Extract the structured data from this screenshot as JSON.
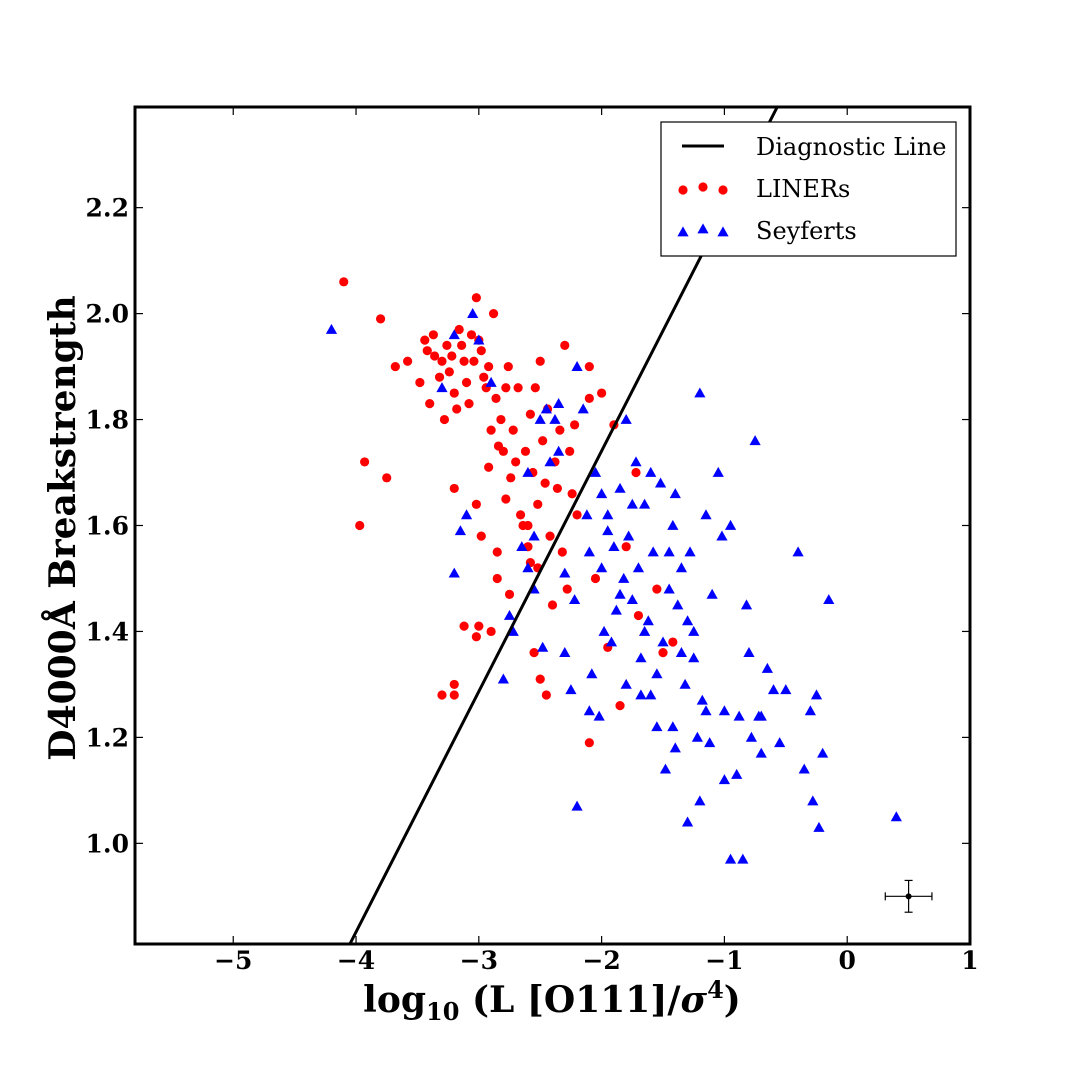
{
  "chart_data": {
    "type": "scatter",
    "title": "",
    "xlabel": "log10 (L [O111]/σ4)",
    "xlabel_parts": {
      "base": "log",
      "sub": "10",
      "mid": " (L [O111]/",
      "sigma": "σ",
      "sup": "4",
      "end": ")"
    },
    "ylabel": "D4000Å Breakstrength",
    "xlim": [
      -5.8,
      1.0
    ],
    "ylim": [
      0.81,
      2.39
    ],
    "xticks": [
      -5,
      -4,
      -3,
      -2,
      -1,
      0,
      1
    ],
    "xtick_labels": [
      "−5",
      "−4",
      "−3",
      "−2",
      "−1",
      "0",
      "1"
    ],
    "yticks": [
      1.0,
      1.2,
      1.4,
      1.6,
      1.8,
      2.0,
      2.2
    ],
    "ytick_labels": [
      "1.0",
      "1.2",
      "1.4",
      "1.6",
      "1.8",
      "2.0",
      "2.2"
    ],
    "grid": false,
    "legend_position": "top-right",
    "diagnostic_line": {
      "name": "Diagnostic Line",
      "color": "#000000",
      "points": [
        [
          -4.05,
          0.81
        ],
        [
          -0.57,
          2.39
        ]
      ]
    },
    "error_bar": {
      "x": 0.5,
      "y": 0.9,
      "xerr": 0.19,
      "yerr": 0.03
    },
    "series": [
      {
        "name": "LINERs",
        "marker": "circle",
        "color": "#ff0000",
        "points": [
          [
            -4.1,
            2.06
          ],
          [
            -3.8,
            1.99
          ],
          [
            -3.97,
            1.6
          ],
          [
            -3.93,
            1.72
          ],
          [
            -3.75,
            1.69
          ],
          [
            -3.68,
            1.9
          ],
          [
            -3.58,
            1.91
          ],
          [
            -3.48,
            1.87
          ],
          [
            -3.44,
            1.95
          ],
          [
            -3.42,
            1.93
          ],
          [
            -3.4,
            1.83
          ],
          [
            -3.37,
            1.96
          ],
          [
            -3.36,
            1.92
          ],
          [
            -3.32,
            1.88
          ],
          [
            -3.3,
            1.91
          ],
          [
            -3.28,
            1.8
          ],
          [
            -3.26,
            1.94
          ],
          [
            -3.24,
            1.89
          ],
          [
            -3.22,
            1.92
          ],
          [
            -3.2,
            1.85
          ],
          [
            -3.18,
            1.82
          ],
          [
            -3.16,
            1.97
          ],
          [
            -3.14,
            1.94
          ],
          [
            -3.12,
            1.91
          ],
          [
            -3.1,
            1.87
          ],
          [
            -3.08,
            1.83
          ],
          [
            -3.06,
            1.96
          ],
          [
            -3.04,
            1.91
          ],
          [
            -3.02,
            2.03
          ],
          [
            -3.0,
            1.95
          ],
          [
            -2.98,
            1.93
          ],
          [
            -2.96,
            1.88
          ],
          [
            -2.94,
            1.86
          ],
          [
            -2.92,
            1.9
          ],
          [
            -2.9,
            1.78
          ],
          [
            -2.88,
            2.0
          ],
          [
            -2.86,
            1.84
          ],
          [
            -2.84,
            1.75
          ],
          [
            -2.82,
            1.8
          ],
          [
            -2.8,
            1.74
          ],
          [
            -2.78,
            1.86
          ],
          [
            -2.76,
            1.9
          ],
          [
            -2.74,
            1.69
          ],
          [
            -2.72,
            1.78
          ],
          [
            -2.7,
            1.72
          ],
          [
            -2.68,
            1.86
          ],
          [
            -2.66,
            1.62
          ],
          [
            -2.64,
            1.6
          ],
          [
            -2.62,
            1.74
          ],
          [
            -2.6,
            1.56
          ],
          [
            -2.58,
            1.81
          ],
          [
            -2.56,
            1.7
          ],
          [
            -2.54,
            1.86
          ],
          [
            -2.52,
            1.64
          ],
          [
            -2.5,
            1.91
          ],
          [
            -2.48,
            1.76
          ],
          [
            -2.46,
            1.68
          ],
          [
            -2.44,
            1.82
          ],
          [
            -2.42,
            1.58
          ],
          [
            -2.4,
            1.45
          ],
          [
            -2.38,
            1.72
          ],
          [
            -2.36,
            1.67
          ],
          [
            -2.34,
            1.78
          ],
          [
            -2.32,
            1.55
          ],
          [
            -2.3,
            1.94
          ],
          [
            -2.28,
            1.48
          ],
          [
            -2.26,
            1.74
          ],
          [
            -2.24,
            1.66
          ],
          [
            -2.22,
            1.79
          ],
          [
            -2.2,
            1.62
          ],
          [
            -2.1,
            1.84
          ],
          [
            -2.1,
            1.9
          ],
          [
            -2.05,
            1.5
          ],
          [
            -2.0,
            1.85
          ],
          [
            -1.95,
            1.37
          ],
          [
            -1.9,
            1.79
          ],
          [
            -1.85,
            1.26
          ],
          [
            -1.8,
            1.56
          ],
          [
            -1.72,
            1.7
          ],
          [
            -1.7,
            1.43
          ],
          [
            -1.55,
            1.48
          ],
          [
            -1.5,
            1.36
          ],
          [
            -1.42,
            1.38
          ],
          [
            -2.1,
            1.19
          ],
          [
            -2.55,
            1.36
          ],
          [
            -2.5,
            1.31
          ],
          [
            -2.45,
            1.28
          ],
          [
            -3.2,
            1.28
          ],
          [
            -3.3,
            1.28
          ],
          [
            -3.2,
            1.3
          ],
          [
            -3.12,
            1.41
          ],
          [
            -3.0,
            1.41
          ],
          [
            -3.02,
            1.39
          ],
          [
            -2.9,
            1.4
          ],
          [
            -2.85,
            1.5
          ],
          [
            -2.85,
            1.55
          ],
          [
            -2.75,
            1.47
          ],
          [
            -3.2,
            1.67
          ],
          [
            -3.02,
            1.64
          ],
          [
            -2.98,
            1.58
          ],
          [
            -2.92,
            1.71
          ],
          [
            -2.78,
            1.65
          ],
          [
            -2.6,
            1.6
          ],
          [
            -2.58,
            1.53
          ],
          [
            -2.52,
            1.52
          ]
        ]
      },
      {
        "name": "Seyferts",
        "marker": "triangle",
        "color": "#0000ff",
        "points": [
          [
            -4.2,
            1.97
          ],
          [
            -3.3,
            1.86
          ],
          [
            -3.2,
            1.96
          ],
          [
            -3.05,
            2.0
          ],
          [
            -3.0,
            1.95
          ],
          [
            -2.9,
            1.87
          ],
          [
            -3.2,
            1.51
          ],
          [
            -3.15,
            1.59
          ],
          [
            -3.1,
            1.62
          ],
          [
            -2.8,
            1.31
          ],
          [
            -2.75,
            1.43
          ],
          [
            -2.72,
            1.4
          ],
          [
            -2.65,
            1.56
          ],
          [
            -2.6,
            1.7
          ],
          [
            -2.55,
            1.58
          ],
          [
            -2.5,
            1.8
          ],
          [
            -2.48,
            1.37
          ],
          [
            -2.45,
            1.82
          ],
          [
            -2.42,
            1.72
          ],
          [
            -2.38,
            1.8
          ],
          [
            -2.35,
            1.83
          ],
          [
            -2.3,
            1.51
          ],
          [
            -2.25,
            1.29
          ],
          [
            -2.22,
            1.46
          ],
          [
            -2.2,
            1.9
          ],
          [
            -2.15,
            1.82
          ],
          [
            -2.12,
            1.62
          ],
          [
            -2.1,
            1.55
          ],
          [
            -2.08,
            1.32
          ],
          [
            -2.05,
            1.7
          ],
          [
            -2.02,
            1.24
          ],
          [
            -2.0,
            1.52
          ],
          [
            -1.98,
            1.4
          ],
          [
            -1.95,
            1.62
          ],
          [
            -1.92,
            1.38
          ],
          [
            -1.9,
            1.56
          ],
          [
            -1.88,
            1.44
          ],
          [
            -1.85,
            1.67
          ],
          [
            -1.82,
            1.5
          ],
          [
            -1.8,
            1.3
          ],
          [
            -1.78,
            1.58
          ],
          [
            -1.75,
            1.46
          ],
          [
            -1.72,
            1.72
          ],
          [
            -1.7,
            1.52
          ],
          [
            -1.68,
            1.35
          ],
          [
            -1.65,
            1.64
          ],
          [
            -1.62,
            1.42
          ],
          [
            -1.6,
            1.28
          ],
          [
            -1.58,
            1.55
          ],
          [
            -1.55,
            1.22
          ],
          [
            -1.52,
            1.68
          ],
          [
            -1.5,
            1.38
          ],
          [
            -1.48,
            1.14
          ],
          [
            -1.45,
            1.48
          ],
          [
            -1.42,
            1.6
          ],
          [
            -1.4,
            1.18
          ],
          [
            -1.38,
            1.45
          ],
          [
            -1.35,
            1.36
          ],
          [
            -1.32,
            1.3
          ],
          [
            -1.3,
            1.04
          ],
          [
            -1.28,
            1.55
          ],
          [
            -1.25,
            1.4
          ],
          [
            -1.22,
            1.2
          ],
          [
            -1.2,
            1.85
          ],
          [
            -1.18,
            1.27
          ],
          [
            -1.15,
            1.62
          ],
          [
            -1.12,
            1.19
          ],
          [
            -1.1,
            1.47
          ],
          [
            -1.05,
            1.7
          ],
          [
            -1.02,
            1.58
          ],
          [
            -1.0,
            1.25
          ],
          [
            -0.95,
            0.97
          ],
          [
            -0.9,
            1.13
          ],
          [
            -0.88,
            1.24
          ],
          [
            -0.85,
            0.97
          ],
          [
            -0.8,
            1.36
          ],
          [
            -0.78,
            1.2
          ],
          [
            -0.75,
            1.76
          ],
          [
            -0.72,
            1.24
          ],
          [
            -0.7,
            1.17
          ],
          [
            -0.65,
            1.33
          ],
          [
            -0.6,
            1.29
          ],
          [
            -0.55,
            1.19
          ],
          [
            -0.5,
            1.29
          ],
          [
            -0.4,
            1.55
          ],
          [
            -0.35,
            1.14
          ],
          [
            -0.3,
            1.25
          ],
          [
            -0.28,
            1.08
          ],
          [
            -0.25,
            1.28
          ],
          [
            -0.23,
            1.03
          ],
          [
            -0.2,
            1.17
          ],
          [
            -0.15,
            1.46
          ],
          [
            0.4,
            1.05
          ],
          [
            -2.2,
            1.07
          ],
          [
            -2.6,
            1.52
          ],
          [
            -2.55,
            1.48
          ],
          [
            -2.35,
            1.74
          ],
          [
            -1.8,
            1.8
          ],
          [
            -1.6,
            1.7
          ],
          [
            -1.4,
            1.66
          ],
          [
            -1.35,
            1.52
          ],
          [
            -1.2,
            1.08
          ],
          [
            -1.0,
            1.12
          ],
          [
            -0.95,
            1.6
          ],
          [
            -0.82,
            1.45
          ],
          [
            -0.7,
            1.24
          ],
          [
            -1.65,
            1.4
          ],
          [
            -1.45,
            1.55
          ],
          [
            -1.3,
            1.42
          ],
          [
            -1.25,
            1.35
          ],
          [
            -1.15,
            1.25
          ],
          [
            -2.1,
            1.25
          ],
          [
            -1.95,
            1.59
          ],
          [
            -1.85,
            1.47
          ],
          [
            -1.75,
            1.64
          ],
          [
            -1.68,
            1.28
          ],
          [
            -1.55,
            1.32
          ],
          [
            -1.42,
            1.22
          ],
          [
            -2.3,
            1.36
          ],
          [
            -2.0,
            1.66
          ]
        ]
      }
    ]
  },
  "legend": {
    "items": [
      {
        "label": "Diagnostic Line",
        "kind": "line",
        "color": "#000000"
      },
      {
        "label": "LINERs",
        "kind": "circle",
        "color": "#ff0000"
      },
      {
        "label": "Seyferts",
        "kind": "triangle",
        "color": "#0000ff"
      }
    ]
  }
}
